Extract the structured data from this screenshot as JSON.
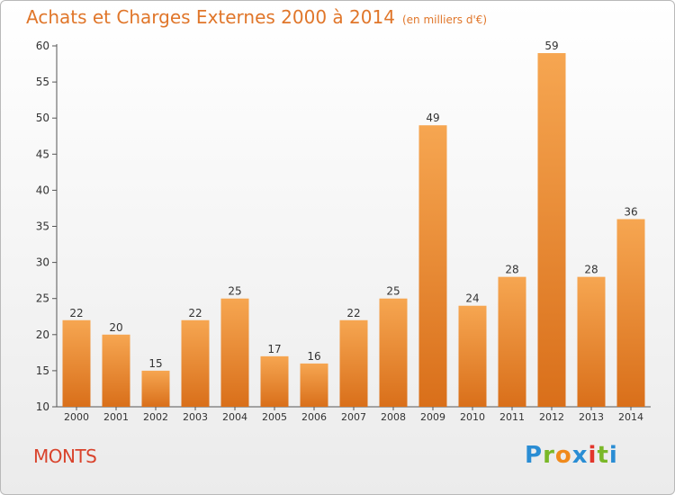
{
  "page": {
    "title": "Achats et Charges Externes 2000 à 2014",
    "unit": "(en milliers d'€)",
    "commune": "MONTS",
    "logo": {
      "text": "Proxiti",
      "letters": [
        {
          "ch": "P",
          "color": "#2a8dd4"
        },
        {
          "ch": "r",
          "color": "#7ab828"
        },
        {
          "ch": "o",
          "color": "#f08a1c"
        },
        {
          "ch": "x",
          "color": "#2a8dd4"
        },
        {
          "ch": "i",
          "color": "#e2362c"
        },
        {
          "ch": "t",
          "color": "#7ab828"
        },
        {
          "ch": "i",
          "color": "#2a8dd4"
        }
      ]
    }
  },
  "colors": {
    "title": "#e0762a",
    "commune": "#d9432c",
    "bar_top": "#f6a651",
    "bar_bottom": "#d96f1a",
    "axis": "#555555"
  },
  "chart_data": {
    "type": "bar",
    "title": "Achats et Charges Externes 2000 à 2014",
    "categories": [
      "2000",
      "2001",
      "2002",
      "2003",
      "2004",
      "2005",
      "2006",
      "2007",
      "2008",
      "2009",
      "2010",
      "2011",
      "2012",
      "2013",
      "2014"
    ],
    "values": [
      22,
      20,
      15,
      22,
      25,
      17,
      16,
      22,
      25,
      49,
      24,
      28,
      59,
      28,
      36
    ],
    "ylim": [
      10,
      60
    ],
    "yticks": [
      10,
      15,
      20,
      25,
      30,
      35,
      40,
      45,
      50,
      55,
      60
    ],
    "grid": false,
    "legend": "none"
  }
}
